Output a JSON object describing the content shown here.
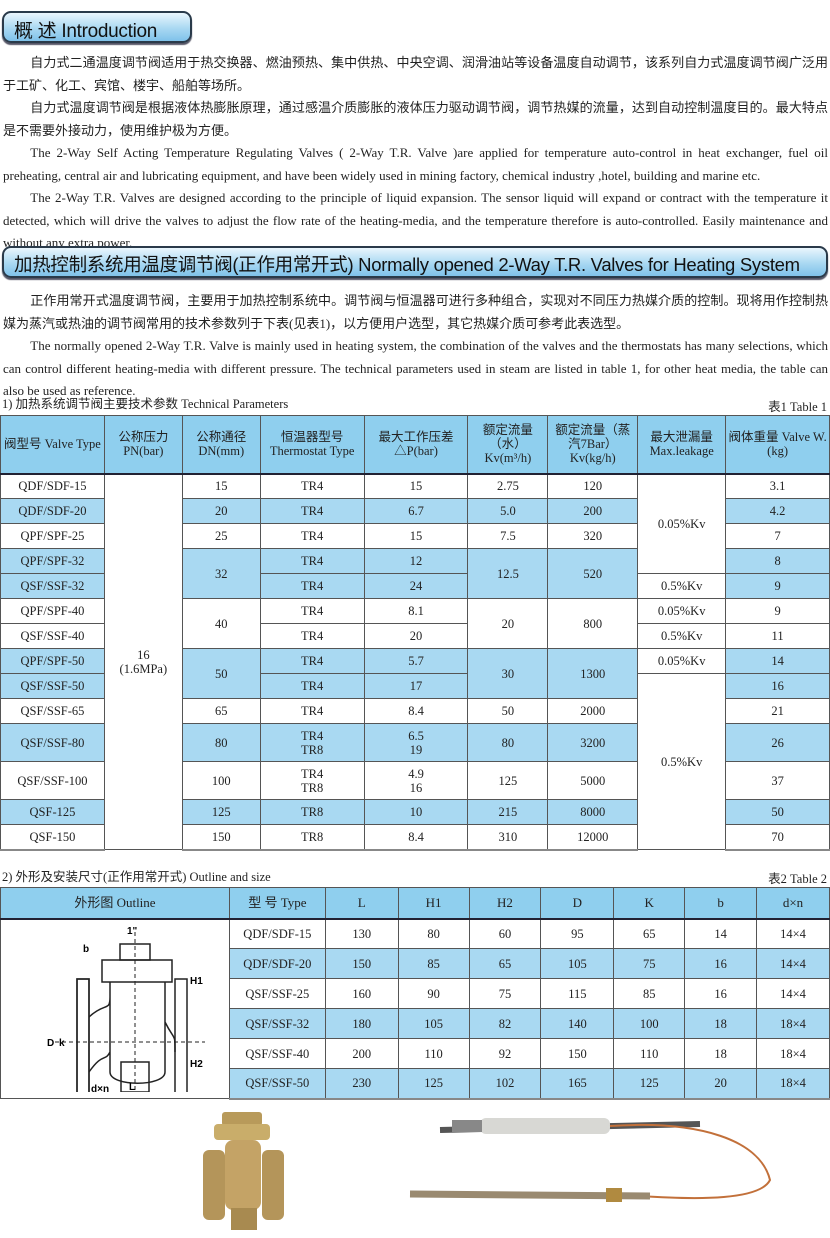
{
  "intro": {
    "heading": "概 述 Introduction",
    "paragraphs": [
      "自力式二通温度调节阀适用于热交换器、燃油预热、集中供热、中央空调、润滑油站等设备温度自动调节，该系列自力式温度调节阀广泛用于工矿、化工、宾馆、楼宇、船舶等场所。",
      "自力式温度调节阀是根据液体热膨胀原理，通过感温介质膨胀的液体压力驱动调节阀，调节热媒的流量，达到自动控制温度目的。最大特点是不需要外接动力，使用维护极为方便。",
      "The 2-Way Self Acting Temperature Regulating Valves ( 2-Way T.R. Valve )are applied for temperature auto-control in heat exchanger, fuel oil preheating, central air and lubricating equipment,  and have been widely used in mining factory, chemical industry ,hotel, building and marine etc.",
      "The 2-Way T.R. Valves are designed according to the principle of liquid expansion. The sensor liquid will expand or contract with the temperature it detected, which will drive the valves to adjust the flow rate of the heating-media, and the temperature therefore is auto-controlled. Easily maintenance and without any extra power."
    ]
  },
  "section": {
    "heading": "加热控制系统用温度调节阀(正作用常开式) Normally opened 2-Way T.R. Valves for Heating System",
    "paragraphs": [
      "正作用常开式温度调节阀，主要用于加热控制系统中。调节阀与恒温器可进行多种组合，实现对不同压力热媒介质的控制。现将用作控制热媒为蒸汽或热油的调节阀常用的技术参数列于下表(见表1)，以方便用户选型，其它热媒介质可参考此表选型。",
      "The normally opened 2-Way T.R. Valve is mainly used in heating system, the combination of the valves and the thermostats has many selections, which can control different heating-media with different pressure. The technical parameters used in steam are listed in table 1, for other heat media, the table can also be used as reference."
    ]
  },
  "table1": {
    "caption": "1) 加热系统调节阀主要技术参数  Technical Parameters",
    "label": "表1   Table 1",
    "headers": [
      "阀型号\nValve Type",
      "公称压力\nPN(bar)",
      "公称通径\nDN(mm)",
      "恒温器型号\nThermostat Type",
      "最大工作压差\n△P(bar)",
      "额定流量\n（水）\nKv(m³/h)",
      "额定流量（蒸\n汽7Bar）\nKv(kg/h)",
      "最大泄漏量\nMax.leakage",
      "阀体重量\nValve W.(kg)"
    ],
    "rows": [
      {
        "blue": false,
        "cells": [
          {
            "t": "QDF/SDF-15"
          },
          {
            "t": "16\n(1.6MPa)",
            "rs": 14,
            "white": true
          },
          {
            "t": "15"
          },
          {
            "t": "TR4"
          },
          {
            "t": "15"
          },
          {
            "t": "2.75"
          },
          {
            "t": "120"
          },
          {
            "t": "0.05%Kv",
            "rs": 4,
            "white": true
          },
          {
            "t": "3.1"
          }
        ]
      },
      {
        "blue": true,
        "cells": [
          {
            "t": "QDF/SDF-20"
          },
          {
            "t": "20"
          },
          {
            "t": "TR4"
          },
          {
            "t": "6.7"
          },
          {
            "t": "5.0"
          },
          {
            "t": "200"
          },
          {
            "t": "4.2"
          }
        ]
      },
      {
        "blue": false,
        "cells": [
          {
            "t": "QPF/SPF-25"
          },
          {
            "t": "25"
          },
          {
            "t": "TR4"
          },
          {
            "t": "15"
          },
          {
            "t": "7.5"
          },
          {
            "t": "320"
          },
          {
            "t": "7"
          }
        ]
      },
      {
        "blue": true,
        "cells": [
          {
            "t": "QPF/SPF-32"
          },
          {
            "t": "32",
            "rs": 2
          },
          {
            "t": "TR4"
          },
          {
            "t": "12"
          },
          {
            "t": "12.5",
            "rs": 2
          },
          {
            "t": "520",
            "rs": 2
          },
          {
            "t": "8"
          }
        ]
      },
      {
        "blue": true,
        "cells": [
          {
            "t": "QSF/SSF-32"
          },
          {
            "t": "TR4"
          },
          {
            "t": "24"
          },
          {
            "t": "0.5%Kv",
            "white": true
          },
          {
            "t": "9"
          }
        ]
      },
      {
        "blue": false,
        "cells": [
          {
            "t": "QPF/SPF-40"
          },
          {
            "t": "40",
            "rs": 2
          },
          {
            "t": "TR4"
          },
          {
            "t": "8.1"
          },
          {
            "t": "20",
            "rs": 2
          },
          {
            "t": "800",
            "rs": 2
          },
          {
            "t": "0.05%Kv"
          },
          {
            "t": "9"
          }
        ]
      },
      {
        "blue": false,
        "cells": [
          {
            "t": "QSF/SSF-40"
          },
          {
            "t": "TR4"
          },
          {
            "t": "20"
          },
          {
            "t": "0.5%Kv"
          },
          {
            "t": "11"
          }
        ]
      },
      {
        "blue": true,
        "cells": [
          {
            "t": "QPF/SPF-50"
          },
          {
            "t": "50",
            "rs": 2
          },
          {
            "t": "TR4"
          },
          {
            "t": "5.7"
          },
          {
            "t": "30",
            "rs": 2
          },
          {
            "t": "1300",
            "rs": 2
          },
          {
            "t": "0.05%Kv",
            "white": true
          },
          {
            "t": "14"
          }
        ]
      },
      {
        "blue": true,
        "cells": [
          {
            "t": "QSF/SSF-50"
          },
          {
            "t": "TR4"
          },
          {
            "t": "17"
          },
          {
            "t": "0.5%Kv",
            "rs": 6,
            "white": true
          },
          {
            "t": "16"
          }
        ]
      },
      {
        "blue": false,
        "cells": [
          {
            "t": "QSF/SSF-65"
          },
          {
            "t": "65"
          },
          {
            "t": "TR4"
          },
          {
            "t": "8.4"
          },
          {
            "t": "50"
          },
          {
            "t": "2000"
          },
          {
            "t": "21"
          }
        ]
      },
      {
        "blue": true,
        "tall": true,
        "cells": [
          {
            "t": "QSF/SSF-80"
          },
          {
            "t": "80"
          },
          {
            "t": "TR4\nTR8"
          },
          {
            "t": "6.5\n19"
          },
          {
            "t": "80"
          },
          {
            "t": "3200"
          },
          {
            "t": "26"
          }
        ]
      },
      {
        "blue": false,
        "tall": true,
        "cells": [
          {
            "t": "QSF/SSF-100"
          },
          {
            "t": "100"
          },
          {
            "t": "TR4\nTR8"
          },
          {
            "t": "4.9\n16"
          },
          {
            "t": "125"
          },
          {
            "t": "5000"
          },
          {
            "t": "37"
          }
        ]
      },
      {
        "blue": true,
        "cells": [
          {
            "t": "QSF-125"
          },
          {
            "t": "125"
          },
          {
            "t": "TR8"
          },
          {
            "t": "10"
          },
          {
            "t": "215"
          },
          {
            "t": "8000"
          },
          {
            "t": "50"
          }
        ]
      },
      {
        "blue": false,
        "cells": [
          {
            "t": "QSF-150"
          },
          {
            "t": "150"
          },
          {
            "t": "TR8"
          },
          {
            "t": "8.4"
          },
          {
            "t": "310"
          },
          {
            "t": "12000"
          },
          {
            "t": "70"
          }
        ]
      }
    ]
  },
  "table2": {
    "caption": "2) 外形及安装尺寸(正作用常开式)  Outline and size",
    "label": "表2   Table 2",
    "headers": [
      "外形图  Outline",
      "型 号 Type",
      "L",
      "H1",
      "H2",
      "D",
      "K",
      "b",
      "d×n"
    ],
    "drawing_labels": {
      "top": "1\"",
      "b": "b",
      "H1": "H1",
      "H2": "H2",
      "D": "D",
      "k": "k",
      "dxn": "d×n",
      "L": "L"
    },
    "rows": [
      [
        "QDF/SDF-15",
        "130",
        "80",
        "60",
        "95",
        "65",
        "14",
        "14×4"
      ],
      [
        "QDF/SDF-20",
        "150",
        "85",
        "65",
        "105",
        "75",
        "16",
        "14×4"
      ],
      [
        "QSF/SSF-25",
        "160",
        "90",
        "75",
        "115",
        "85",
        "16",
        "14×4"
      ],
      [
        "QSF/SSF-32",
        "180",
        "105",
        "82",
        "140",
        "100",
        "18",
        "18×4"
      ],
      [
        "QSF/SSF-40",
        "200",
        "110",
        "92",
        "150",
        "110",
        "18",
        "18×4"
      ],
      [
        "QSF/SSF-50",
        "230",
        "125",
        "102",
        "165",
        "125",
        "20",
        "18×4"
      ]
    ]
  },
  "photos": {
    "items": [
      "valve-body-photo",
      "thermostat-photo"
    ]
  }
}
